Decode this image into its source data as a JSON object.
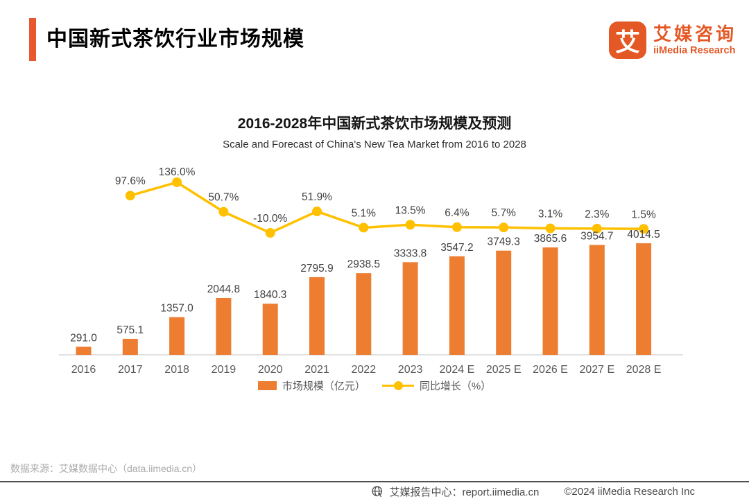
{
  "header": {
    "title": "中国新式茶饮行业市场规模",
    "accent_color": "#E8572D",
    "logo": {
      "glyph": "艾",
      "name_cn": "艾媒咨询",
      "name_en": "iiMedia Research",
      "brand_color": "#E45826"
    }
  },
  "chart": {
    "title": "2016-2028年中国新式茶饮市场规模及预测",
    "subtitle": "Scale and Forecast of China's New Tea Market from 2016 to 2028"
  },
  "chart_data": {
    "type": "bar+line",
    "title": "2016-2028年中国新式茶饮市场规模及预测",
    "categories": [
      "2016",
      "2017",
      "2018",
      "2019",
      "2020",
      "2021",
      "2022",
      "2023",
      "2024 E",
      "2025 E",
      "2026 E",
      "2027 E",
      "2028 E"
    ],
    "series": [
      {
        "name": "市场规模（亿元）",
        "type": "bar",
        "color": "#ED7D31",
        "values": [
          291.0,
          575.1,
          1357.0,
          2044.8,
          1840.3,
          2795.9,
          2938.5,
          3333.8,
          3547.2,
          3749.3,
          3865.6,
          3954.7,
          4014.5
        ]
      },
      {
        "name": "同比增长（%）",
        "type": "line",
        "color": "#FFC000",
        "x_start_index": 1,
        "values": [
          97.6,
          136.0,
          50.7,
          -10.0,
          51.9,
          5.1,
          13.5,
          6.4,
          5.7,
          3.1,
          2.3,
          1.5
        ]
      }
    ],
    "legend_position": "bottom",
    "grid": false,
    "value_labels_shown": true
  },
  "legend": {
    "bar_label": "市场规模（亿元）",
    "line_label": "同比增长（%）"
  },
  "footer": {
    "source": "数据来源：艾媒数据中心（data.iimedia.cn）",
    "report_center": "艾媒报告中心：report.iimedia.cn",
    "copyright": "©2024  iiMedia Research  Inc"
  }
}
